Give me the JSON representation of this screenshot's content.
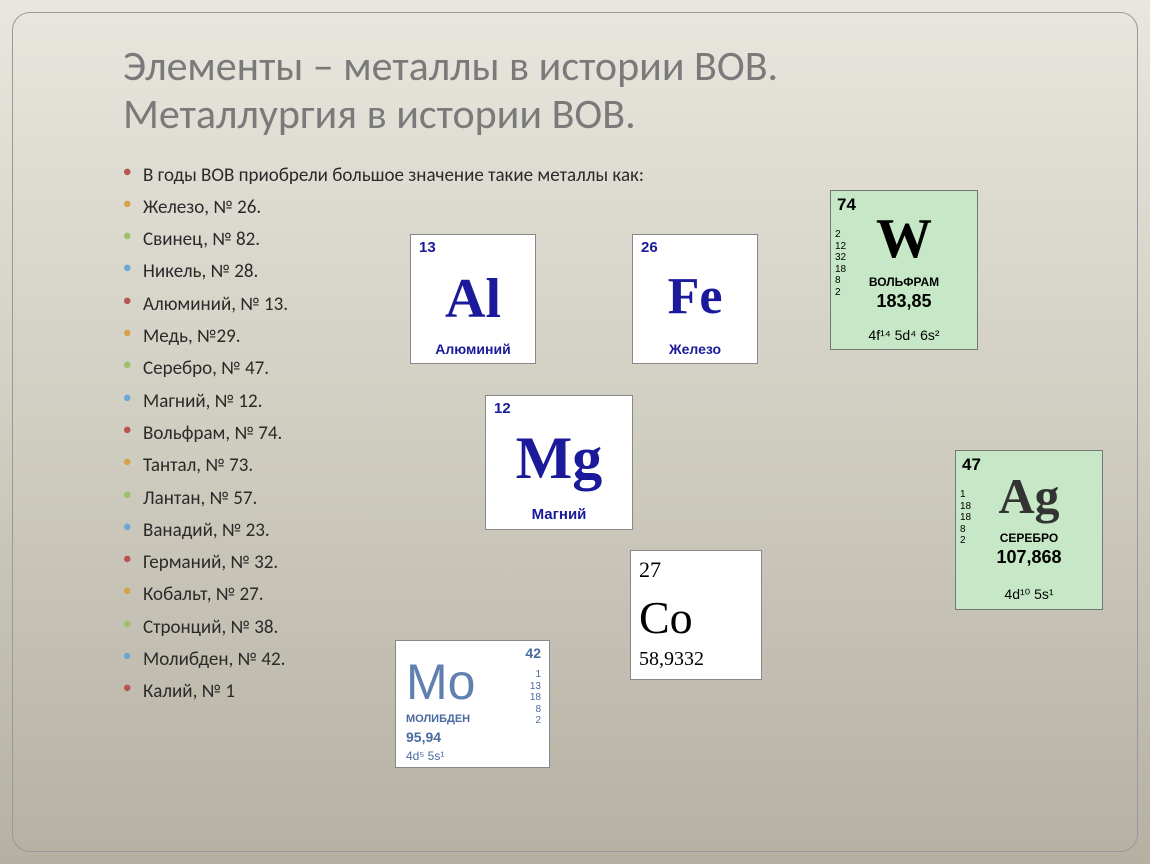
{
  "title_line1": "Элементы – металлы в истории ВОВ.",
  "title_line2": "Металлургия в истории ВОВ.",
  "bullets": [
    "В годы ВОВ приобрели большое значение такие металлы как:",
    "Железо, № 26.",
    "Свинец, № 82.",
    "Никель, № 28.",
    "Алюминий, № 13.",
    "Медь, №29.",
    "Серебро, № 47.",
    "Магний, № 12.",
    "Вольфрам, № 74.",
    "Тантал, № 73.",
    "Лантан, № 57.",
    "Ванадий, № 23.",
    "Германий, № 32.",
    "Кобальт, № 27.",
    "Стронций, № 38.",
    "Молибден, № 42.",
    "Калий, № 1"
  ],
  "tiles": {
    "al": {
      "number": "13",
      "symbol": "Al",
      "name": "Алюминий"
    },
    "fe": {
      "number": "26",
      "symbol": "Fe",
      "name": "Железо"
    },
    "mg": {
      "number": "12",
      "symbol": "Mg",
      "name": "Магний"
    },
    "w": {
      "number": "74",
      "symbol": "W",
      "name": "ВОЛЬФРАМ",
      "mass": "183,85",
      "config": "4f¹⁴ 5d⁴ 6s²",
      "shells": "2\n12\n32\n18\n8\n2"
    },
    "ag": {
      "number": "47",
      "symbol": "Ag",
      "name": "СЕРЕБРО",
      "mass": "107,868",
      "config": "4d¹⁰ 5s¹",
      "shells": "1\n18\n18\n8\n2"
    },
    "co": {
      "number": "27",
      "symbol": "Co",
      "mass": "58,9332"
    },
    "mo": {
      "number": "42",
      "symbol": "Mo",
      "name": "МОЛИБДЕН",
      "mass": "95,94",
      "config": "4d⁵ 5s¹",
      "shells": "1\n13\n18\n8\n2"
    }
  },
  "colors": {
    "title": "#7a7a7a",
    "body_text": "#2a2a2a",
    "blue_symbol": "#1a1a9a",
    "green_tile_bg": "#c6e8c6",
    "mo_text": "#4a6aa0",
    "bg_top": "#e8e6de",
    "bg_bottom": "#b5b0a2"
  }
}
